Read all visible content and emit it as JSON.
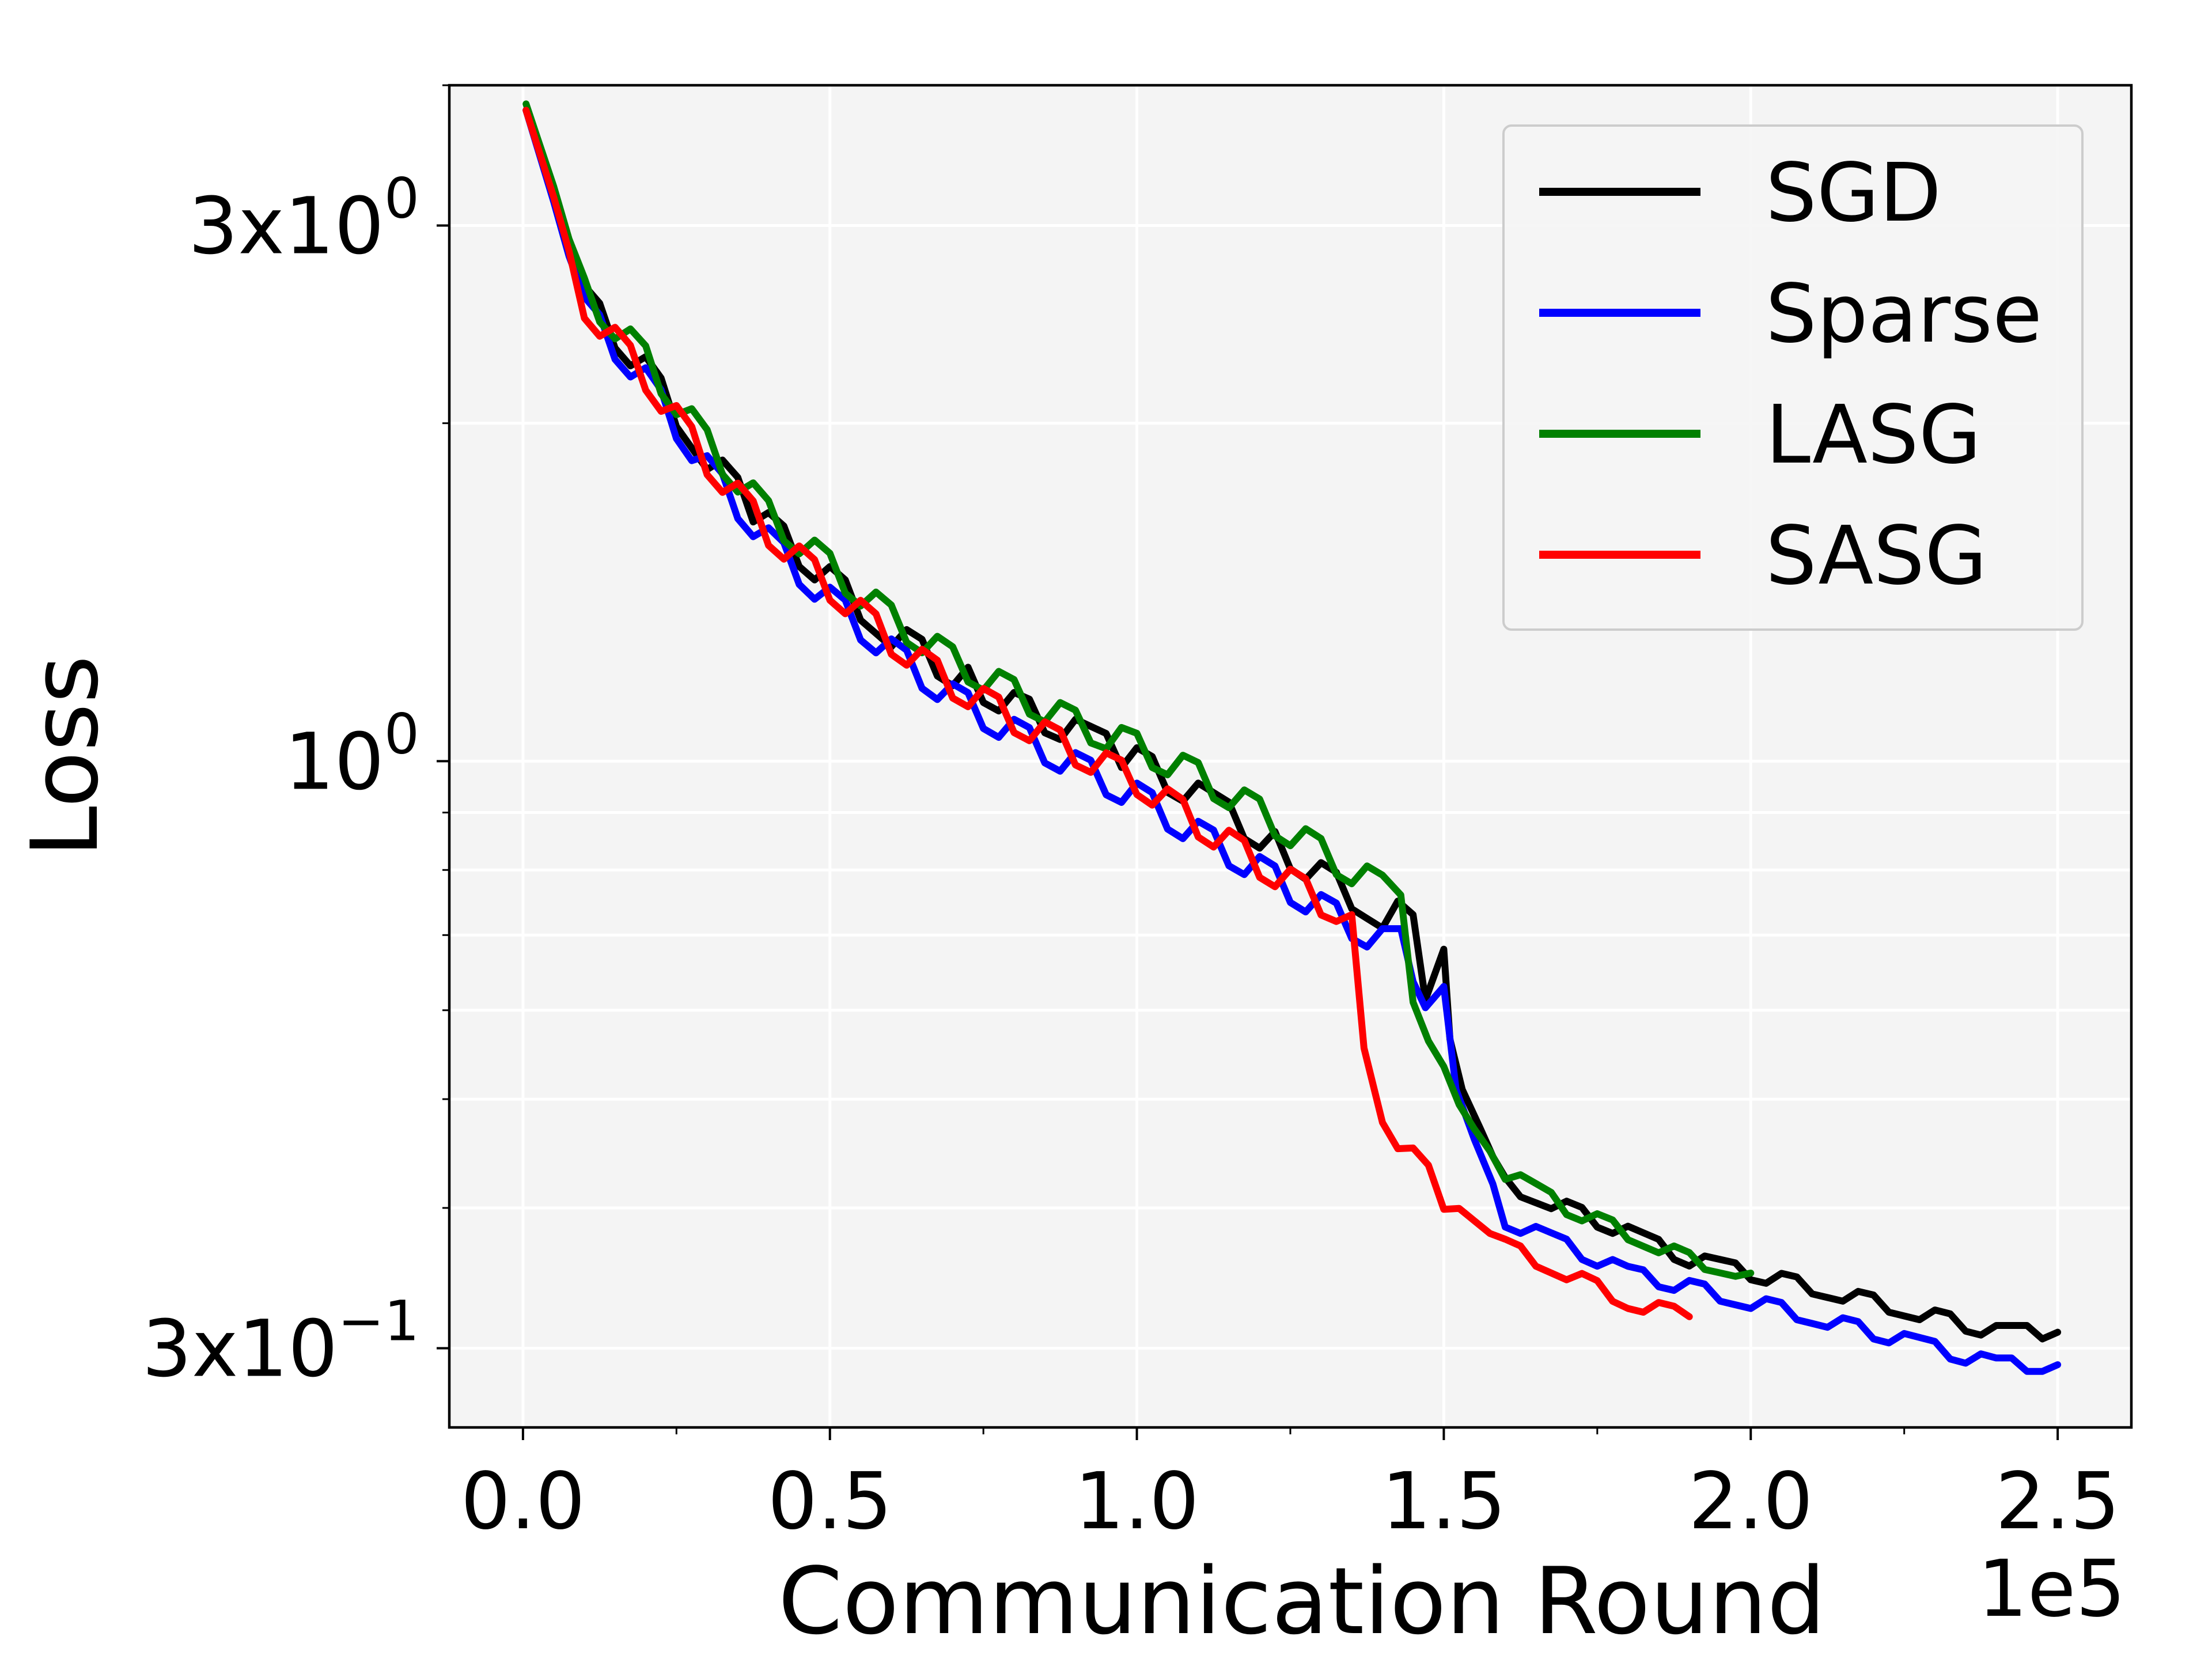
{
  "chart_data": {
    "type": "line",
    "title": "",
    "xlabel": "Communication Round",
    "ylabel": "Loss",
    "x_scale_note": "1e5",
    "xlim": [
      -0.12,
      2.62
    ],
    "ylim": [
      0.255,
      4.0
    ],
    "yscale": "log",
    "grid": true,
    "legend_position": "top-right",
    "x_ticks": [
      {
        "value": 0.0,
        "label": "0.0"
      },
      {
        "value": 0.5,
        "label": "0.5"
      },
      {
        "value": 1.0,
        "label": "1.0"
      },
      {
        "value": 1.5,
        "label": "1.5"
      },
      {
        "value": 2.0,
        "label": "2.0"
      },
      {
        "value": 2.5,
        "label": "2.5"
      }
    ],
    "y_ticks": [
      {
        "value": 3.0,
        "mant": "3x10",
        "exp": "0"
      },
      {
        "value": 1.0,
        "mant": "10",
        "exp": "0"
      },
      {
        "value": 0.3,
        "mant": "3x10",
        "exp": "−1"
      }
    ],
    "series": [
      {
        "name": "SGD",
        "color": "#000000",
        "x": [
          0.005,
          0.05,
          0.1,
          0.2,
          0.3,
          0.4,
          0.5,
          0.6,
          0.7,
          0.8,
          0.9,
          1.0,
          1.1,
          1.2,
          1.3,
          1.4,
          1.45,
          1.47,
          1.5,
          1.51,
          1.53,
          1.56,
          1.6,
          1.7,
          1.8,
          1.9,
          2.0,
          2.1,
          2.2,
          2.3,
          2.4,
          2.5
        ],
        "values": [
          3.8,
          3.2,
          2.58,
          2.23,
          1.87,
          1.62,
          1.45,
          1.3,
          1.2,
          1.12,
          1.06,
          1.0,
          0.93,
          0.86,
          0.79,
          0.73,
          0.73,
          0.63,
          0.68,
          0.55,
          0.51,
          0.47,
          0.42,
          0.4,
          0.38,
          0.36,
          0.35,
          0.34,
          0.33,
          0.32,
          0.31,
          0.31
        ]
      },
      {
        "name": "Sparse",
        "color": "#0000ff",
        "x": [
          0.005,
          0.05,
          0.1,
          0.2,
          0.3,
          0.4,
          0.5,
          0.6,
          0.7,
          0.8,
          0.9,
          1.0,
          1.1,
          1.2,
          1.3,
          1.4,
          1.43,
          1.47,
          1.5,
          1.52,
          1.55,
          1.58,
          1.6,
          1.7,
          1.8,
          1.9,
          2.0,
          2.1,
          2.2,
          2.3,
          2.4,
          2.5
        ],
        "values": [
          3.8,
          3.15,
          2.52,
          2.18,
          1.82,
          1.57,
          1.39,
          1.25,
          1.14,
          1.06,
          0.99,
          0.93,
          0.86,
          0.8,
          0.74,
          0.69,
          0.69,
          0.62,
          0.63,
          0.51,
          0.46,
          0.42,
          0.39,
          0.37,
          0.35,
          0.34,
          0.33,
          0.32,
          0.31,
          0.3,
          0.29,
          0.29
        ]
      },
      {
        "name": "LASG",
        "color": "#008000",
        "x": [
          0.005,
          0.05,
          0.1,
          0.2,
          0.3,
          0.4,
          0.5,
          0.6,
          0.7,
          0.8,
          0.9,
          1.0,
          1.1,
          1.2,
          1.3,
          1.4,
          1.43,
          1.45,
          1.5,
          1.55,
          1.6,
          1.7,
          1.8,
          1.9,
          2.0
        ],
        "values": [
          3.85,
          3.25,
          2.62,
          2.28,
          1.92,
          1.66,
          1.49,
          1.34,
          1.23,
          1.15,
          1.08,
          1.03,
          0.97,
          0.9,
          0.83,
          0.77,
          0.76,
          0.61,
          0.52,
          0.47,
          0.43,
          0.4,
          0.38,
          0.36,
          0.35
        ]
      },
      {
        "name": "SASG",
        "color": "#ff0000",
        "x": [
          0.005,
          0.05,
          0.1,
          0.2,
          0.3,
          0.4,
          0.5,
          0.6,
          0.7,
          0.8,
          0.9,
          1.0,
          1.1,
          1.2,
          1.3,
          1.35,
          1.37,
          1.4,
          1.45,
          1.5,
          1.6,
          1.7,
          1.8,
          1.9
        ],
        "values": [
          3.8,
          3.18,
          2.55,
          2.2,
          1.85,
          1.6,
          1.43,
          1.28,
          1.17,
          1.09,
          1.02,
          0.96,
          0.88,
          0.81,
          0.75,
          0.73,
          0.54,
          0.49,
          0.44,
          0.41,
          0.37,
          0.35,
          0.33,
          0.32
        ]
      }
    ]
  }
}
